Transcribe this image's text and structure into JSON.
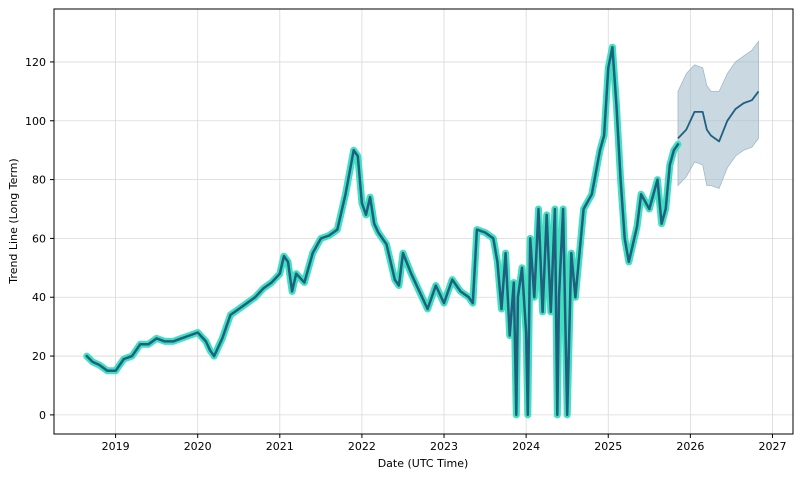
{
  "chart_data": {
    "type": "line",
    "xlabel": "Date (UTC Time)",
    "ylabel": "Trend Line (Long Term)",
    "xlim": [
      2018.25,
      2027.25
    ],
    "ylim": [
      -6.5,
      138
    ],
    "x_ticks": [
      2019,
      2020,
      2021,
      2022,
      2023,
      2024,
      2025,
      2026,
      2027
    ],
    "y_ticks": [
      0,
      20,
      40,
      60,
      80,
      100,
      120
    ],
    "grid": true,
    "colors": {
      "line": "#1f5f7f",
      "glow": "#40e0c0",
      "band": "#9fb9c9",
      "forecast": "#1f5f7f"
    },
    "series": [
      {
        "role": "history",
        "x": [
          2018.65,
          2018.72,
          2018.8,
          2018.9,
          2019.0,
          2019.1,
          2019.2,
          2019.3,
          2019.4,
          2019.5,
          2019.6,
          2019.7,
          2019.8,
          2019.9,
          2020.0,
          2020.1,
          2020.15,
          2020.2,
          2020.3,
          2020.4,
          2020.5,
          2020.6,
          2020.7,
          2020.8,
          2020.9,
          2021.0,
          2021.05,
          2021.1,
          2021.15,
          2021.2,
          2021.3,
          2021.4,
          2021.5,
          2021.6,
          2021.7,
          2021.8,
          2021.9,
          2021.95,
          2022.0,
          2022.05,
          2022.1,
          2022.15,
          2022.2,
          2022.3,
          2022.4,
          2022.45,
          2022.5,
          2022.6,
          2022.7,
          2022.8,
          2022.9,
          2023.0,
          2023.1,
          2023.2,
          2023.3,
          2023.35,
          2023.4,
          2023.5,
          2023.6,
          2023.65,
          2023.7,
          2023.75,
          2023.8,
          2023.85,
          2023.88,
          2023.9,
          2023.95,
          2024.0,
          2024.02,
          2024.05,
          2024.1,
          2024.15,
          2024.2,
          2024.25,
          2024.3,
          2024.35,
          2024.38,
          2024.4,
          2024.45,
          2024.5,
          2024.55,
          2024.6,
          2024.7,
          2024.8,
          2024.9,
          2024.95,
          2025.0,
          2025.05,
          2025.1,
          2025.15,
          2025.2,
          2025.25,
          2025.3,
          2025.35,
          2025.4,
          2025.5,
          2025.6,
          2025.65,
          2025.7,
          2025.75,
          2025.8,
          2025.85
        ],
        "y": [
          20,
          18,
          17,
          15,
          15,
          19,
          20,
          24,
          24,
          26,
          25,
          25,
          26,
          27,
          28,
          25,
          22,
          20,
          26,
          34,
          36,
          38,
          40,
          43,
          45,
          48,
          54,
          52,
          42,
          48,
          45,
          55,
          60,
          61,
          63,
          75,
          90,
          88,
          72,
          68,
          74,
          65,
          62,
          58,
          46,
          44,
          55,
          48,
          42,
          36,
          44,
          38,
          46,
          42,
          40,
          38,
          63,
          62,
          60,
          52,
          36,
          55,
          27,
          45,
          0,
          40,
          50,
          28,
          0,
          60,
          40,
          70,
          35,
          68,
          35,
          70,
          0,
          40,
          70,
          0,
          55,
          40,
          70,
          75,
          90,
          95,
          118,
          125,
          105,
          80,
          60,
          52,
          58,
          64,
          75,
          70,
          80,
          65,
          70,
          85,
          90,
          92
        ]
      },
      {
        "role": "forecast",
        "x": [
          2025.85,
          2025.95,
          2026.05,
          2026.15,
          2026.2,
          2026.25,
          2026.35,
          2026.45,
          2026.55,
          2026.65,
          2026.75,
          2026.83
        ],
        "y": [
          94,
          97,
          103,
          103,
          97,
          95,
          93,
          100,
          104,
          106,
          107,
          110
        ],
        "y_low": [
          78,
          81,
          86,
          85,
          78,
          78,
          77,
          84,
          88,
          90,
          91,
          94
        ],
        "y_high": [
          110,
          116,
          119,
          118,
          112,
          110,
          110,
          116,
          120,
          122,
          124,
          127
        ]
      }
    ]
  }
}
